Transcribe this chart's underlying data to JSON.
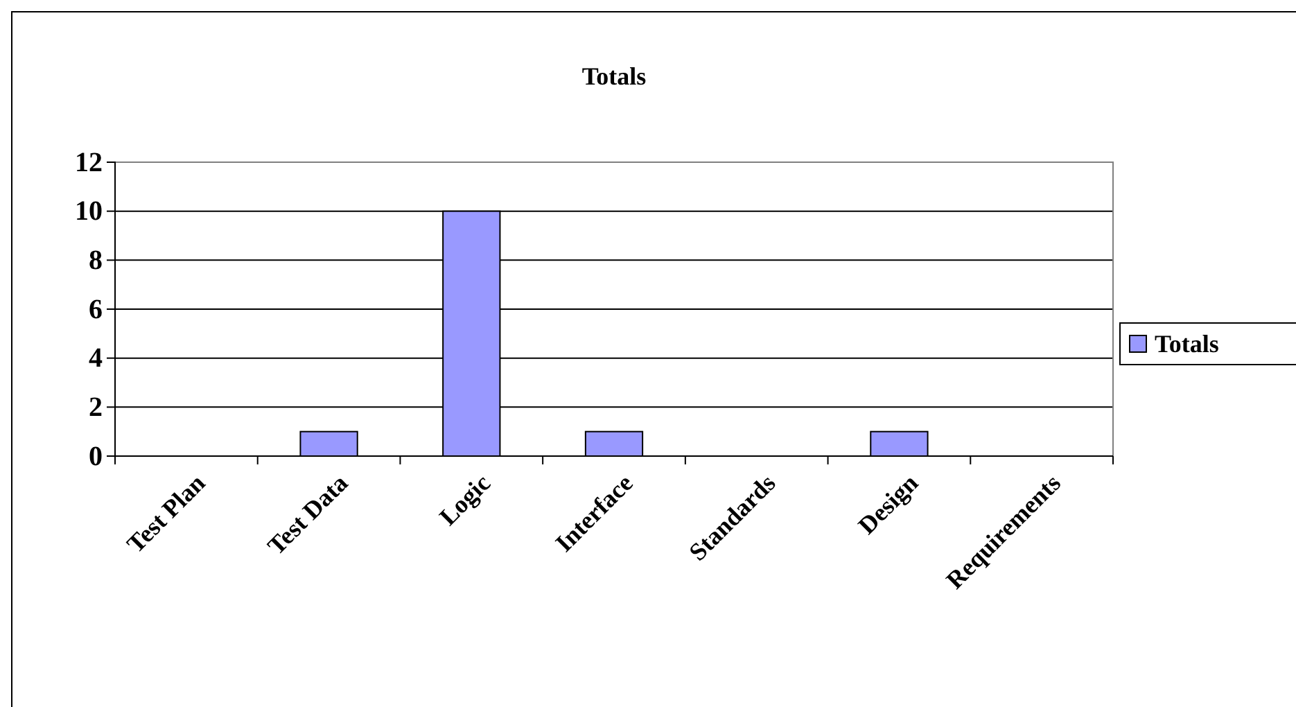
{
  "chart_data": {
    "type": "bar",
    "title": "Totals",
    "categories": [
      "Test Plan",
      "Test Data",
      "Logic",
      "Interface",
      "Standards",
      "Design",
      "Requirements"
    ],
    "series": [
      {
        "name": "Totals",
        "color": "#9999ff",
        "values": [
          0,
          1,
          10,
          1,
          0,
          1,
          0
        ]
      }
    ],
    "ylim": [
      0,
      12
    ],
    "yticks": [
      0,
      2,
      4,
      6,
      8,
      10,
      12
    ],
    "grid": "y",
    "legend": "right"
  }
}
